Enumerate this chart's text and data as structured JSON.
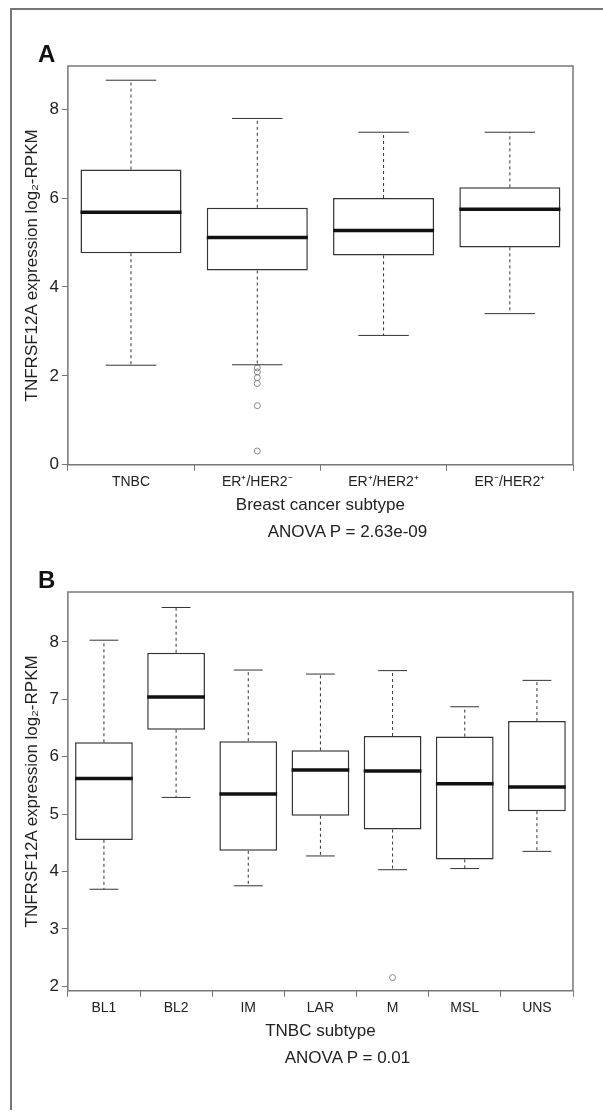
{
  "chart_data": [
    {
      "type": "box",
      "title": "A",
      "xlabel": "Breast cancer subtype",
      "ylabel": "TNFRSF12A expression log₂-RPKM",
      "annotations": [
        "ANOVA P = 2.63e-09"
      ],
      "color": "#333333",
      "categories": [
        "TNBC",
        "ER⁺/HER2⁻",
        "ER⁺/HER2⁺",
        "ER⁻/HER2⁺"
      ],
      "boxes": [
        {
          "low": 2.24,
          "q1": 4.76,
          "median": 5.68,
          "q3": 6.64,
          "high": 8.65
        },
        {
          "low": 2.25,
          "q1": 4.37,
          "median": 5.11,
          "q3": 5.78,
          "high": 7.79,
          "outliers": [
            2.18,
            2.09,
            1.96,
            1.83,
            1.33,
            0.31
          ]
        },
        {
          "low": 2.91,
          "q1": 4.71,
          "median": 5.27,
          "q3": 6.0,
          "high": 7.48
        },
        {
          "low": 3.4,
          "q1": 4.89,
          "median": 5.75,
          "q3": 6.24,
          "high": 7.48
        }
      ],
      "ylim": [
        0,
        8.97
      ],
      "yticks": [
        0,
        2,
        4,
        6,
        8
      ]
    },
    {
      "type": "box",
      "title": "B",
      "xlabel": "TNBC subtype",
      "ylabel": "TNFRSF12A expression log₂-RPKM",
      "annotations": [
        "ANOVA P = 0.01"
      ],
      "color": "#333333",
      "categories": [
        "BL1",
        "BL2",
        "IM",
        "LAR",
        "M",
        "MSL",
        "UNS"
      ],
      "boxes": [
        {
          "low": 3.69,
          "q1": 4.55,
          "median": 5.62,
          "q3": 6.25,
          "high": 8.03
        },
        {
          "low": 5.29,
          "q1": 6.47,
          "median": 7.04,
          "q3": 7.81,
          "high": 8.6
        },
        {
          "low": 3.75,
          "q1": 4.36,
          "median": 5.35,
          "q3": 6.27,
          "high": 7.51
        },
        {
          "low": 4.27,
          "q1": 4.97,
          "median": 5.77,
          "q3": 6.11,
          "high": 7.44
        },
        {
          "low": 4.03,
          "q1": 4.73,
          "median": 5.75,
          "q3": 6.36,
          "high": 7.5,
          "outliers": [
            2.15
          ]
        },
        {
          "low": 4.05,
          "q1": 4.21,
          "median": 5.53,
          "q3": 6.35,
          "high": 6.87
        },
        {
          "low": 4.35,
          "q1": 5.05,
          "median": 5.47,
          "q3": 6.62,
          "high": 7.33
        }
      ],
      "ylim": [
        1.92,
        8.87
      ],
      "yticks": [
        2,
        3,
        4,
        5,
        6,
        7,
        8
      ]
    }
  ]
}
